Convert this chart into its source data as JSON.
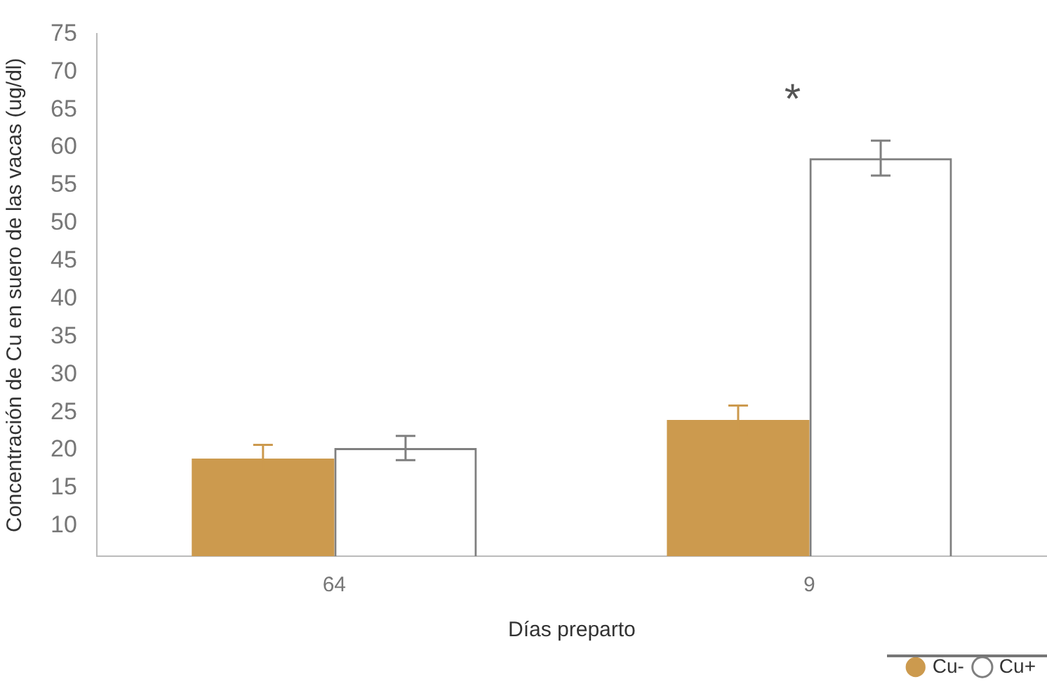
{
  "chart_data": {
    "type": "bar",
    "xlabel": "Días preparto",
    "ylabel": "Concentración de Cu en suero de las vacas (ug/dl)",
    "categories": [
      "64",
      "9"
    ],
    "series": [
      {
        "name": "Cu-",
        "color": "#cc9a4e",
        "values": [
          18.9,
          24.0
        ],
        "errors": [
          1.8,
          1.9
        ]
      },
      {
        "name": "Cu+",
        "color": "#7f7f7f",
        "values": [
          20.3,
          58.6
        ],
        "errors": [
          1.6,
          2.3
        ]
      }
    ],
    "ylim": [
      6,
      75
    ],
    "yticks": [
      10,
      15,
      20,
      25,
      30,
      35,
      40,
      45,
      50,
      55,
      60,
      65,
      70,
      75
    ],
    "annotations": [
      "*"
    ],
    "grid": false,
    "legend": "bottom right"
  }
}
